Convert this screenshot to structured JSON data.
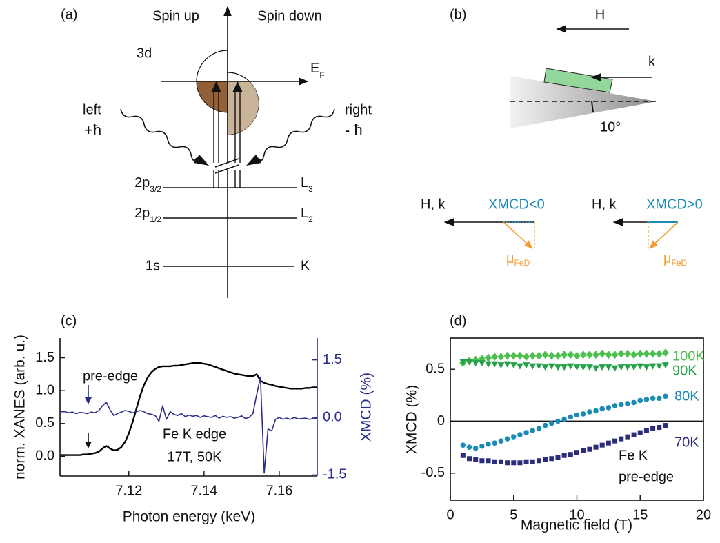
{
  "panel_a": {
    "label": "(a)",
    "spin_up": "Spin up",
    "spin_down": "Spin down",
    "band": "3d",
    "fermi": {
      "main": "E",
      "sub": "F"
    },
    "left": "left",
    "left_helicity": "+ħ",
    "right": "right",
    "right_helicity": "- ħ",
    "levels": [
      {
        "name": {
          "main": "2p",
          "sub": "3/2"
        },
        "edge": {
          "main": "L",
          "sub": "3"
        }
      },
      {
        "name": {
          "main": "2p",
          "sub": "1/2"
        },
        "edge": {
          "main": "L",
          "sub": "2"
        }
      },
      {
        "name": {
          "main": "1s"
        },
        "edge": {
          "main": "K"
        }
      }
    ]
  },
  "panel_b": {
    "label": "(b)",
    "field": "H",
    "wavevector": "k",
    "angle": "10°",
    "negative": {
      "direction": "H, k",
      "sign": "XMCD<0",
      "moment": {
        "main": "μ",
        "sub": "FeD"
      }
    },
    "positive": {
      "direction": "H, k",
      "sign": "XMCD>0",
      "moment": {
        "main": "μ",
        "sub": "FeD"
      }
    }
  },
  "chart_data": [
    {
      "type": "line",
      "title": "(c)",
      "xlabel": "Photon energy (keV)",
      "ylabel": "norm. XANES (arb. u.)",
      "y2label": "XMCD (%)",
      "annotations": [
        "pre-edge",
        "Fe K edge",
        "17T, 50K"
      ],
      "xlim": [
        7.1017,
        7.1701
      ],
      "xticks": [
        7.12,
        7.14,
        7.16
      ],
      "ylim": [
        -0.3,
        1.8
      ],
      "yticks": [
        {
          "value": 0,
          "label": "0.0"
        },
        0.5,
        {
          "value": 1,
          "label": "1.0"
        },
        1.5
      ],
      "y2lim": [
        -1.53,
        2.07
      ],
      "y2ticks": [
        1.5,
        {
          "value": 0,
          "label": "0.0"
        },
        -1.5
      ],
      "x": [
        7.102,
        7.103,
        7.104,
        7.105,
        7.106,
        7.107,
        7.108,
        7.109,
        7.11,
        7.111,
        7.112,
        7.113,
        7.114,
        7.115,
        7.116,
        7.117,
        7.118,
        7.119,
        7.12,
        7.121,
        7.122,
        7.123,
        7.124,
        7.125,
        7.126,
        7.127,
        7.128,
        7.129,
        7.13,
        7.131,
        7.132,
        7.133,
        7.134,
        7.135,
        7.136,
        7.137,
        7.138,
        7.139,
        7.14,
        7.141,
        7.142,
        7.143,
        7.144,
        7.145,
        7.146,
        7.147,
        7.148,
        7.149,
        7.15,
        7.151,
        7.152,
        7.153,
        7.154,
        7.155,
        7.156,
        7.157,
        7.158,
        7.159,
        7.16,
        7.161,
        7.162,
        7.163,
        7.164,
        7.165,
        7.166,
        7.167,
        7.168,
        7.169,
        7.17
      ],
      "series": [
        {
          "color": "#000000",
          "values": [
            0.02,
            0.02,
            0.02,
            0.02,
            0.02,
            0.02,
            0.03,
            0.03,
            0.04,
            0.05,
            0.07,
            0.12,
            0.16,
            0.12,
            0.09,
            0.1,
            0.14,
            0.22,
            0.35,
            0.52,
            0.72,
            0.92,
            1.08,
            1.2,
            1.28,
            1.33,
            1.36,
            1.37,
            1.37,
            1.37,
            1.38,
            1.38,
            1.39,
            1.4,
            1.41,
            1.42,
            1.42,
            1.42,
            1.41,
            1.4,
            1.38,
            1.36,
            1.34,
            1.32,
            1.3,
            1.28,
            1.26,
            1.25,
            1.24,
            1.23,
            1.22,
            1.22,
            1.25,
            1.15,
            1.12,
            1.1,
            1.09,
            1.07,
            1.06,
            1.05,
            1.04,
            1.03,
            1.03,
            1.03,
            1.03,
            1.04,
            1.04,
            1.05,
            1.05
          ]
        },
        {
          "color": "#2b2d8a",
          "axis": "y2",
          "values": [
            0.15,
            0.15,
            0.12,
            0.14,
            0.1,
            0.13,
            0.12,
            0.1,
            0.14,
            0.12,
            0.18,
            0.3,
            0.4,
            0.2,
            0.05,
            0.1,
            0.14,
            0.18,
            0.16,
            0.12,
            0.15,
            0.18,
            0.15,
            0.1,
            0.08,
            0.05,
            -0.1,
            0.3,
            -0.05,
            0.15,
            0.08,
            0.05,
            0.1,
            0.02,
            0.06,
            0.03,
            0.05,
            0.0,
            0.04,
            0.02,
            0.0,
            0.05,
            -0.02,
            0.03,
            0.0,
            0.02,
            -0.02,
            0.0,
            0.04,
            -0.03,
            0.0,
            0.1,
            0.6,
            1.05,
            -1.45,
            -0.3,
            -0.35,
            -0.05,
            0.0,
            -0.05,
            -0.02,
            -0.05,
            0.0,
            -0.04,
            -0.03,
            -0.02,
            -0.05,
            -0.03,
            -0.02
          ]
        }
      ]
    },
    {
      "type": "scatter",
      "title": "(d)",
      "xlabel": "Magnetic field (T)",
      "ylabel": "XMCD (%)",
      "annotations": [
        "Fe K",
        "pre-edge"
      ],
      "zero_line": true,
      "xlim": [
        0,
        20
      ],
      "xticks": [
        0,
        5,
        10,
        15,
        20
      ],
      "ylim": [
        -0.76,
        0.8
      ],
      "yticks": [
        -0.5,
        0,
        0.5
      ],
      "x": [
        1,
        1.5,
        2,
        2.5,
        3,
        3.5,
        4,
        4.5,
        5,
        5.5,
        6,
        6.5,
        7,
        7.5,
        8,
        8.5,
        9,
        9.5,
        10,
        10.5,
        11,
        11.5,
        12,
        12.5,
        13,
        13.5,
        14,
        14.5,
        15,
        15.5,
        16,
        16.5,
        17
      ],
      "series": [
        {
          "name": "100K",
          "color": "#4cbf4f",
          "marker": "diamond",
          "values": [
            0.56,
            0.58,
            0.59,
            0.6,
            0.61,
            0.62,
            0.62,
            0.63,
            0.63,
            0.63,
            0.62,
            0.63,
            0.63,
            0.64,
            0.63,
            0.63,
            0.64,
            0.64,
            0.63,
            0.64,
            0.64,
            0.64,
            0.65,
            0.64,
            0.64,
            0.65,
            0.65,
            0.64,
            0.65,
            0.65,
            0.65,
            0.65,
            0.66
          ]
        },
        {
          "name": "90K",
          "color": "#27a04a",
          "marker": "triangle-down",
          "values": [
            0.57,
            0.57,
            0.56,
            0.56,
            0.55,
            0.55,
            0.54,
            0.55,
            0.54,
            0.53,
            0.54,
            0.53,
            0.53,
            0.52,
            0.53,
            0.52,
            0.52,
            0.53,
            0.52,
            0.52,
            0.52,
            0.51,
            0.52,
            0.52,
            0.51,
            0.52,
            0.52,
            0.52,
            0.53,
            0.52,
            0.53,
            0.53,
            0.54
          ]
        },
        {
          "name": "80K",
          "color": "#1a8ab8",
          "marker": "circle",
          "values": [
            -0.23,
            -0.25,
            -0.26,
            -0.24,
            -0.22,
            -0.21,
            -0.19,
            -0.17,
            -0.15,
            -0.13,
            -0.11,
            -0.09,
            -0.07,
            -0.04,
            -0.02,
            0.0,
            0.02,
            0.04,
            0.06,
            0.07,
            0.09,
            0.1,
            0.12,
            0.13,
            0.15,
            0.16,
            0.17,
            0.18,
            0.2,
            0.21,
            0.22,
            0.22,
            0.24
          ]
        },
        {
          "name": "70K",
          "color": "#2b2d7c",
          "marker": "square",
          "values": [
            -0.33,
            -0.36,
            -0.37,
            -0.38,
            -0.38,
            -0.39,
            -0.39,
            -0.4,
            -0.4,
            -0.4,
            -0.39,
            -0.39,
            -0.38,
            -0.37,
            -0.36,
            -0.35,
            -0.33,
            -0.32,
            -0.3,
            -0.28,
            -0.27,
            -0.25,
            -0.23,
            -0.21,
            -0.19,
            -0.17,
            -0.15,
            -0.13,
            -0.11,
            -0.09,
            -0.07,
            -0.06,
            -0.04
          ]
        }
      ]
    }
  ]
}
